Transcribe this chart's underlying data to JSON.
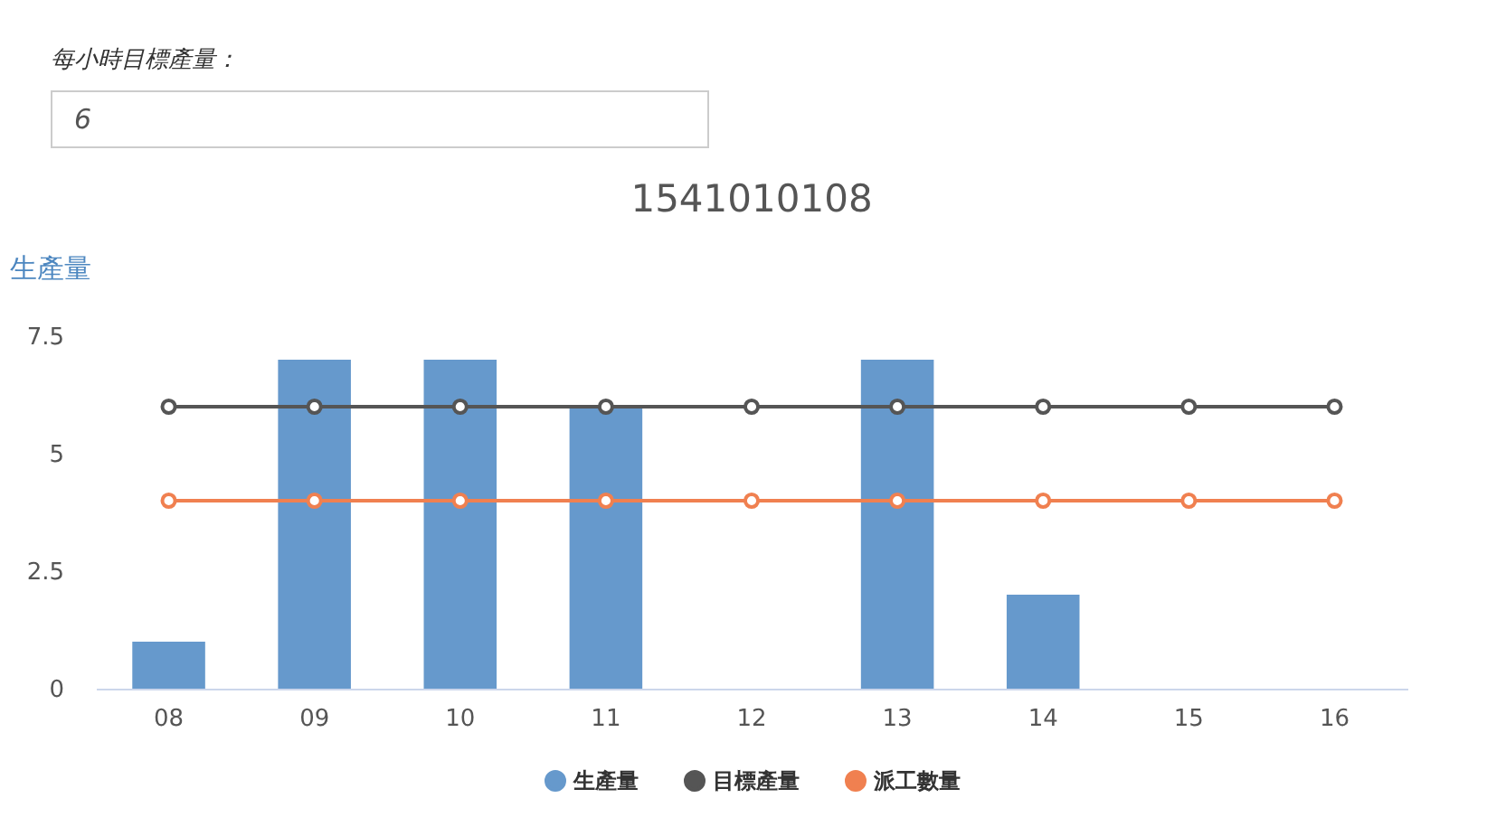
{
  "chart_data": {
    "type": "bar",
    "title": "1541010108",
    "ylabel": "生產量",
    "annotations": [
      "每小時目標產量：",
      "6"
    ],
    "categories": [
      "08",
      "09",
      "10",
      "11",
      "12",
      "13",
      "14",
      "15",
      "16"
    ],
    "series": [
      {
        "name": "生產量",
        "color": "#6699cc",
        "values": [
          1,
          7,
          7,
          6,
          0,
          7,
          2,
          0,
          0
        ]
      },
      {
        "name": "目標產量",
        "type": "line",
        "color": "#555555",
        "values": [
          6,
          6,
          6,
          6,
          6,
          6,
          6,
          6,
          6
        ]
      },
      {
        "name": "派工數量",
        "type": "line",
        "color": "#f08050",
        "values": [
          4,
          4,
          4,
          4,
          4,
          4,
          4,
          4,
          4
        ]
      }
    ],
    "ylim": [
      0,
      7.5
    ],
    "yticks": [
      0,
      2.5,
      5,
      7.5
    ],
    "legend": "bottom",
    "marker": "circle"
  }
}
